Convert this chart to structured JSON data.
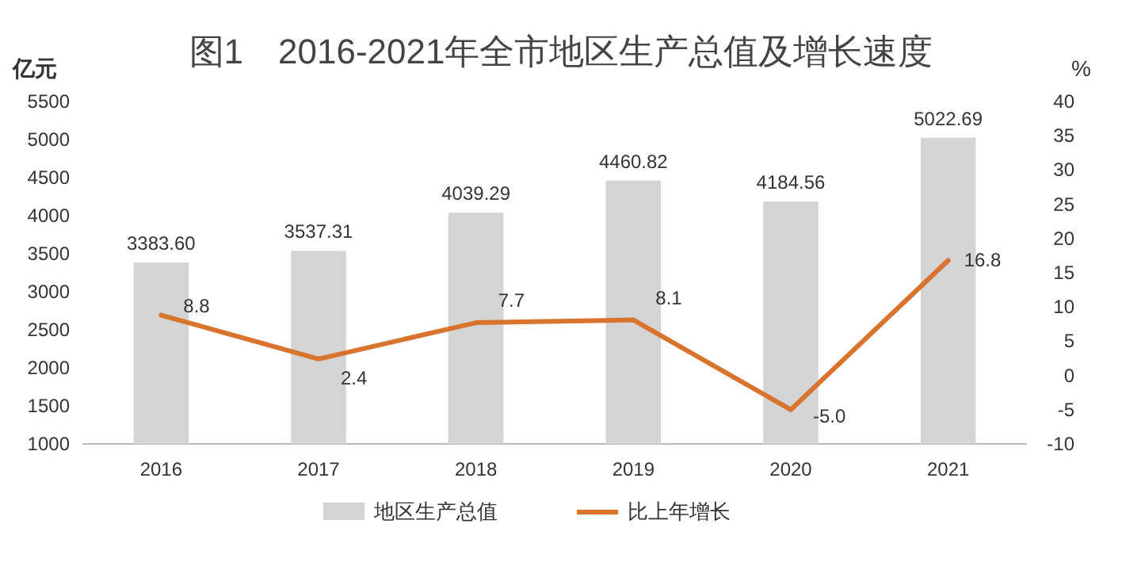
{
  "chart_data": {
    "type": "bar",
    "title": "图1　2016-2021年全市地区生产总值及增长速度",
    "ylabel": "亿元",
    "y2label": "%",
    "categories": [
      "2016",
      "2017",
      "2018",
      "2019",
      "2020",
      "2021"
    ],
    "series": [
      {
        "name": "地区生产总值",
        "color": "#d4d4d4",
        "values": [
          3383.6,
          3537.31,
          4039.29,
          4460.82,
          4184.56,
          5022.69
        ],
        "value_labels": [
          "3383.60",
          "3537.31",
          "4039.29",
          "4460.82",
          "4184.56",
          "5022.69"
        ]
      },
      {
        "name": "比上年增长",
        "type": "line",
        "axis": "y2",
        "color": "#d9742e",
        "values": [
          8.8,
          2.4,
          7.7,
          8.1,
          -5.0,
          16.8
        ],
        "value_labels": [
          "8.8",
          "2.4",
          "7.7",
          "8.1",
          "-5.0",
          "16.8"
        ]
      }
    ],
    "ylim": [
      1000,
      5500
    ],
    "yticks": [
      1000,
      1500,
      2000,
      2500,
      3000,
      3500,
      4000,
      4500,
      5000,
      5500
    ],
    "y2lim": [
      -10,
      40
    ],
    "y2ticks": [
      -10,
      -5,
      0,
      5,
      10,
      15,
      20,
      25,
      30,
      35,
      40
    ],
    "legend": "bottom",
    "grid": false,
    "marker": "none",
    "line_style": "solid"
  }
}
